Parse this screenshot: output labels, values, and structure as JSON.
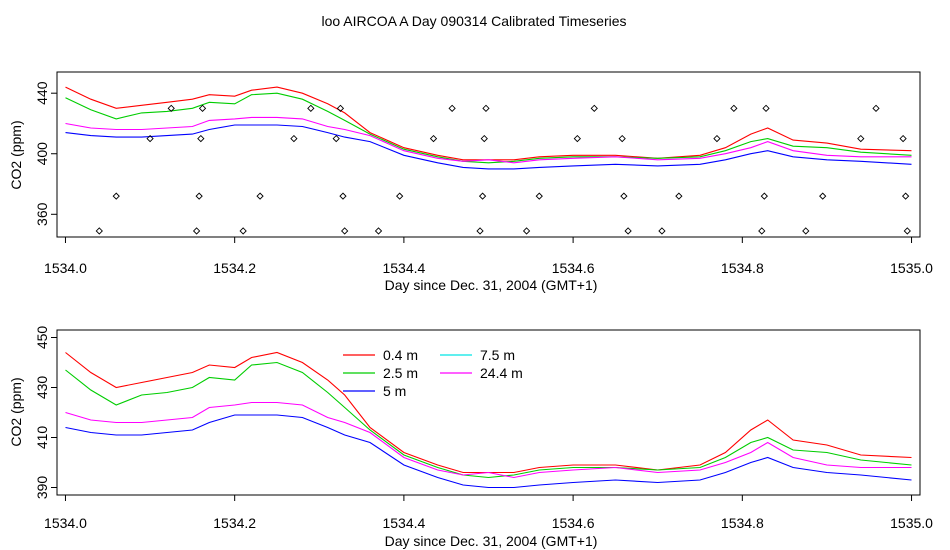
{
  "figure": {
    "title": "loo AIRCOA A  Day 090314  Calibrated Timeseries"
  },
  "chart_data": [
    {
      "type": "scatter",
      "name": "top-panel",
      "xlabel": "Day since Dec. 31, 2004 (GMT+1)",
      "ylabel": "CO2 (ppm)",
      "xlim": [
        1533.99,
        1535.01
      ],
      "ylim": [
        345,
        454
      ],
      "xticks": [
        1534.0,
        1534.2,
        1534.4,
        1534.6,
        1534.8,
        1535.0
      ],
      "xtick_labels": [
        "1534.0",
        "1534.2",
        "1534.4",
        "1534.6",
        "1534.8",
        "1535.0"
      ],
      "yticks": [
        360,
        400,
        440
      ],
      "ytick_labels": [
        "360",
        "400",
        "440"
      ],
      "series_ref": "lines",
      "points": {
        "marker": "diamond-open",
        "x": [
          1534.04,
          1534.06,
          1534.1,
          1534.125,
          1534.155,
          1534.158,
          1534.16,
          1534.162,
          1534.21,
          1534.23,
          1534.27,
          1534.29,
          1534.32,
          1534.325,
          1534.328,
          1534.33,
          1534.37,
          1534.395,
          1534.435,
          1534.457,
          1534.49,
          1534.493,
          1534.495,
          1534.497,
          1534.545,
          1534.56,
          1534.605,
          1534.625,
          1534.658,
          1534.66,
          1534.665,
          1534.705,
          1534.725,
          1534.77,
          1534.79,
          1534.823,
          1534.826,
          1534.828,
          1534.875,
          1534.895,
          1534.94,
          1534.958,
          1534.99,
          1534.993,
          1534.995
        ],
        "y": [
          349,
          372,
          410,
          430,
          349,
          372,
          410,
          430,
          349,
          372,
          410,
          430,
          410,
          430,
          372,
          349,
          349,
          372,
          410,
          430,
          349,
          372,
          410,
          430,
          349,
          372,
          410,
          430,
          410,
          372,
          349,
          349,
          372,
          410,
          430,
          349,
          372,
          430,
          349,
          372,
          410,
          430,
          410,
          372,
          349
        ]
      }
    },
    {
      "type": "line",
      "name": "bottom-panel",
      "xlabel": "Day since Dec. 31, 2004 (GMT+1)",
      "ylabel": "CO2 (ppm)",
      "xlim": [
        1533.99,
        1535.01
      ],
      "ylim": [
        387,
        453
      ],
      "xticks": [
        1534.0,
        1534.2,
        1534.4,
        1534.6,
        1534.8,
        1535.0
      ],
      "xtick_labels": [
        "1534.0",
        "1534.2",
        "1534.4",
        "1534.6",
        "1534.8",
        "1535.0"
      ],
      "yticks": [
        390,
        410,
        430,
        450
      ],
      "ytick_labels": [
        "390",
        "410",
        "430",
        "450"
      ],
      "legend": {
        "position": "top-center",
        "entries": [
          {
            "name": "0.4 m",
            "color": "#ff0000"
          },
          {
            "name": "2.5 m",
            "color": "#00cd00"
          },
          {
            "name": "5 m",
            "color": "#0000ff"
          },
          {
            "name": "7.5 m",
            "color": "#00e5e5"
          },
          {
            "name": "24.4 m",
            "color": "#ff00ff"
          }
        ]
      }
    }
  ],
  "lines": {
    "x": [
      1534.0,
      1534.03,
      1534.06,
      1534.09,
      1534.12,
      1534.15,
      1534.17,
      1534.2,
      1534.22,
      1534.25,
      1534.28,
      1534.31,
      1534.33,
      1534.36,
      1534.4,
      1534.44,
      1534.47,
      1534.5,
      1534.53,
      1534.56,
      1534.6,
      1534.65,
      1534.7,
      1534.75,
      1534.78,
      1534.81,
      1534.83,
      1534.86,
      1534.9,
      1534.94,
      1535.0
    ],
    "series": [
      {
        "name": "0.4 m",
        "color": "#ff0000",
        "values": [
          444,
          436,
          430,
          432,
          434,
          436,
          439,
          438,
          442,
          444,
          440,
          433,
          427,
          414,
          404,
          399,
          396,
          396,
          396,
          398,
          399,
          399,
          397,
          399,
          404,
          413,
          417,
          409,
          407,
          403,
          402
        ]
      },
      {
        "name": "2.5 m",
        "color": "#00cd00",
        "values": [
          437,
          429,
          423,
          427,
          428,
          430,
          434,
          433,
          439,
          440,
          436,
          428,
          422,
          413,
          403,
          398,
          395,
          394,
          395,
          397,
          398,
          398,
          397,
          398,
          402,
          408,
          410,
          405,
          404,
          401,
          399
        ]
      },
      {
        "name": "5 m",
        "color": "#0000ff",
        "values": [
          414,
          412,
          411,
          411,
          412,
          413,
          416,
          419,
          419,
          419,
          418,
          414,
          411,
          408,
          399,
          394,
          391,
          390,
          390,
          391,
          392,
          393,
          392,
          393,
          396,
          400,
          402,
          398,
          396,
          395,
          393
        ]
      },
      {
        "name": "7.5 m",
        "color": "#00e5e5",
        "values": []
      },
      {
        "name": "24.4 m",
        "color": "#ff00ff",
        "values": [
          420,
          417,
          416,
          416,
          417,
          418,
          422,
          423,
          424,
          424,
          423,
          418,
          416,
          412,
          402,
          397,
          395,
          396,
          394,
          396,
          397,
          398,
          396,
          397,
          400,
          404,
          408,
          402,
          399,
          398,
          398
        ]
      }
    ]
  }
}
